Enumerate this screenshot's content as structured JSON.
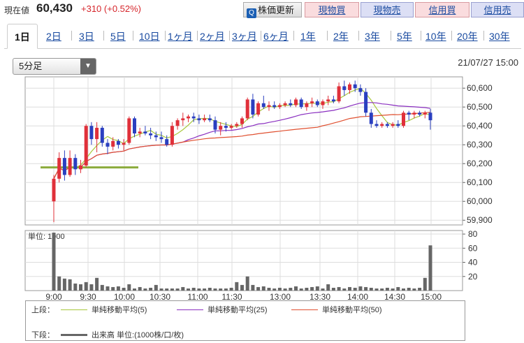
{
  "header": {
    "label": "現在値",
    "price": "60,430",
    "change": "+310 (+0.52%)",
    "update_button": "株価更新",
    "buttons": [
      "現物買",
      "現物売",
      "信用買",
      "信用売"
    ]
  },
  "tabs": [
    "1日",
    "2日",
    "3日",
    "5日",
    "10日",
    "1ヶ月",
    "2ヶ月",
    "3ヶ月",
    "6ヶ月",
    "1年",
    "2年",
    "3年",
    "5年",
    "10年",
    "20年",
    "30年"
  ],
  "interval_select": "5分足",
  "datetime": "21/07/27 15:00",
  "colors": {
    "up": "#e0303a",
    "down": "#2a3fc0",
    "ma5": "#a8c83c",
    "ma25": "#8a2fc0",
    "ma50": "#e05030",
    "volume": "#666666"
  },
  "chart_data": {
    "type": "candlestick",
    "time_labels": [
      "9:00",
      "9:30",
      "10:00",
      "10:30",
      "11:00",
      "11:30",
      "13:00",
      "13:30",
      "14:00",
      "14:30",
      "15:00"
    ],
    "price_ticks": [
      "60,600",
      "60,500",
      "60,400",
      "60,300",
      "60,200",
      "60,100",
      "60,000",
      "59,900"
    ],
    "price_range": [
      59875,
      60660
    ],
    "volume_ticks": [
      "80",
      "60",
      "40",
      "20"
    ],
    "volume_range": [
      0,
      85
    ],
    "volume_unit_label": "単位: 1000",
    "candles": [
      [
        60000,
        60140,
        59890,
        60120
      ],
      [
        60120,
        60260,
        60100,
        60230
      ],
      [
        60230,
        60270,
        60110,
        60140
      ],
      [
        60140,
        60270,
        60130,
        60230
      ],
      [
        60230,
        60250,
        60140,
        60170
      ],
      [
        60170,
        60220,
        60150,
        60190
      ],
      [
        60190,
        60410,
        60180,
        60400
      ],
      [
        60400,
        60420,
        60300,
        60330
      ],
      [
        60330,
        60420,
        60260,
        60390
      ],
      [
        60390,
        60400,
        60290,
        60310
      ],
      [
        60310,
        60330,
        60250,
        60290
      ],
      [
        60290,
        60340,
        60270,
        60320
      ],
      [
        60320,
        60330,
        60280,
        60300
      ],
      [
        60300,
        60330,
        60270,
        60310
      ],
      [
        60310,
        60450,
        60300,
        60440
      ],
      [
        60440,
        60450,
        60340,
        60360
      ],
      [
        60360,
        60390,
        60340,
        60370
      ],
      [
        60370,
        60400,
        60350,
        60360
      ],
      [
        60360,
        60390,
        60330,
        60350
      ],
      [
        60350,
        60370,
        60320,
        60340
      ],
      [
        60340,
        60370,
        60310,
        60330
      ],
      [
        60330,
        60350,
        60290,
        60300
      ],
      [
        60300,
        60420,
        60290,
        60400
      ],
      [
        60400,
        60440,
        60380,
        60430
      ],
      [
        60430,
        60470,
        60400,
        60440
      ],
      [
        60440,
        60460,
        60420,
        60450
      ],
      [
        60450,
        60470,
        60420,
        60440
      ],
      [
        60440,
        60460,
        60410,
        60430
      ],
      [
        60430,
        60460,
        60420,
        60440
      ],
      [
        60440,
        60460,
        60420,
        60430
      ],
      [
        60430,
        60450,
        60360,
        60380
      ],
      [
        60380,
        60420,
        60350,
        60400
      ],
      [
        60400,
        60420,
        60370,
        60390
      ],
      [
        60390,
        60410,
        60380,
        60400
      ],
      [
        60400,
        60420,
        60390,
        60410
      ],
      [
        60410,
        60450,
        60390,
        60440
      ],
      [
        60440,
        60550,
        60430,
        60540
      ],
      [
        60540,
        60570,
        60440,
        60460
      ],
      [
        60460,
        60530,
        60450,
        60520
      ],
      [
        60520,
        60560,
        60490,
        60500
      ],
      [
        60500,
        60530,
        60480,
        60510
      ],
      [
        60510,
        60530,
        60490,
        60500
      ],
      [
        60500,
        60520,
        60490,
        60510
      ],
      [
        60510,
        60530,
        60500,
        60520
      ],
      [
        60520,
        60540,
        60500,
        60510
      ],
      [
        60510,
        60550,
        60500,
        60540
      ],
      [
        60540,
        60550,
        60490,
        60500
      ],
      [
        60500,
        60530,
        60480,
        60520
      ],
      [
        60520,
        60550,
        60500,
        60530
      ],
      [
        60530,
        60540,
        60500,
        60510
      ],
      [
        60510,
        60540,
        60490,
        60530
      ],
      [
        60530,
        60560,
        60510,
        60540
      ],
      [
        60540,
        60560,
        60520,
        60530
      ],
      [
        60530,
        60630,
        60520,
        60610
      ],
      [
        60610,
        60640,
        60560,
        60590
      ],
      [
        60590,
        60630,
        60570,
        60620
      ],
      [
        60620,
        60640,
        60580,
        60600
      ],
      [
        60600,
        60620,
        60560,
        60580
      ],
      [
        60580,
        60600,
        60450,
        60470
      ],
      [
        60470,
        60490,
        60390,
        60410
      ],
      [
        60410,
        60430,
        60390,
        60400
      ],
      [
        60400,
        60420,
        60390,
        60410
      ],
      [
        60410,
        60420,
        60390,
        60400
      ],
      [
        60400,
        60420,
        60390,
        60410
      ],
      [
        60410,
        60430,
        60390,
        60400
      ],
      [
        60400,
        60480,
        60390,
        60470
      ],
      [
        60470,
        60480,
        60430,
        60460
      ],
      [
        60460,
        60480,
        60440,
        60470
      ],
      [
        60470,
        60480,
        60450,
        60460
      ],
      [
        60460,
        60480,
        60440,
        60470
      ],
      [
        60470,
        60490,
        60380,
        60430
      ]
    ],
    "volumes": [
      82,
      20,
      17,
      16,
      10,
      9,
      12,
      9,
      18,
      8,
      6,
      5,
      6,
      4,
      9,
      3,
      5,
      3,
      4,
      8,
      3,
      3,
      3,
      3,
      5,
      3,
      4,
      3,
      3,
      4,
      3,
      3,
      3,
      4,
      12,
      8,
      20,
      8,
      5,
      6,
      4,
      3,
      4,
      3,
      4,
      6,
      3,
      4,
      5,
      6,
      3,
      9,
      4,
      5,
      3,
      5,
      4,
      6,
      5,
      4,
      3,
      3,
      4,
      3,
      5,
      3,
      4,
      3,
      4,
      18,
      64
    ],
    "legend": [
      {
        "section": "上段：",
        "label": "単純移動平均(5)"
      },
      {
        "label": "単純移動平均(25)"
      },
      {
        "label": "単純移動平均(50)"
      },
      {
        "section": "下段：",
        "label": "出来高 単位:(1000株/口/枚)"
      }
    ]
  }
}
